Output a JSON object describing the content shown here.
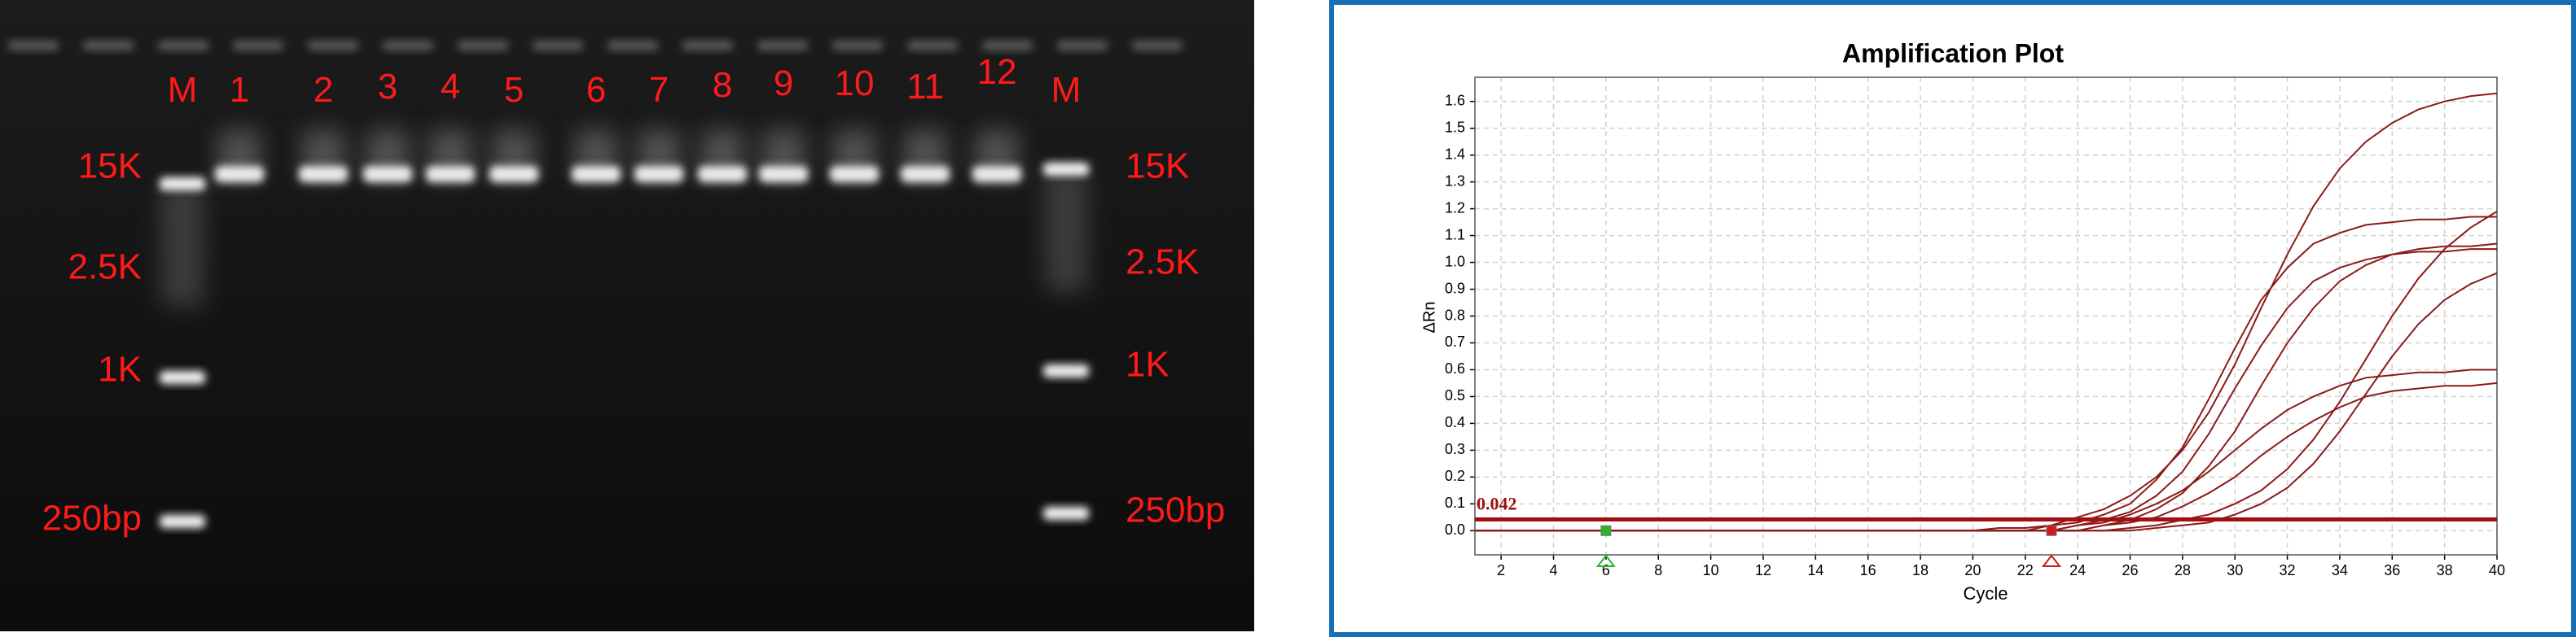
{
  "gel": {
    "lanes": [
      "M",
      "1",
      "2",
      "3",
      "4",
      "5",
      "6",
      "7",
      "8",
      "9",
      "10",
      "11",
      "12",
      "M"
    ],
    "ladder": [
      "15K",
      "2.5K",
      "1K",
      "250bp"
    ]
  },
  "chart_data": {
    "type": "line",
    "title": "Amplification Plot",
    "x_label": "Cycle",
    "y_label": "ΔRn",
    "x": [
      1,
      2,
      3,
      4,
      5,
      6,
      7,
      8,
      9,
      10,
      11,
      12,
      13,
      14,
      15,
      16,
      17,
      18,
      19,
      20,
      21,
      22,
      23,
      24,
      25,
      26,
      27,
      28,
      29,
      30,
      31,
      32,
      33,
      34,
      35,
      36,
      37,
      38,
      39,
      40
    ],
    "series": [
      {
        "color": "#8b1a1a",
        "values": [
          0,
          0,
          0,
          0,
          0,
          0,
          0,
          0,
          0,
          0,
          0,
          0,
          0,
          0,
          0,
          0,
          0,
          0,
          0,
          0,
          0.01,
          0.01,
          0.02,
          0.05,
          0.08,
          0.13,
          0.2,
          0.3,
          0.44,
          0.62,
          0.83,
          1.03,
          1.21,
          1.35,
          1.45,
          1.52,
          1.57,
          1.6,
          1.62,
          1.63
        ]
      },
      {
        "color": "#8b1a1a",
        "values": [
          0,
          0,
          0,
          0,
          0,
          0,
          0,
          0,
          0,
          0,
          0,
          0,
          0,
          0,
          0,
          0,
          0,
          0,
          0,
          0,
          0,
          0,
          0.02,
          0.03,
          0.06,
          0.1,
          0.19,
          0.31,
          0.49,
          0.68,
          0.86,
          0.98,
          1.07,
          1.11,
          1.14,
          1.15,
          1.16,
          1.16,
          1.17,
          1.17
        ]
      },
      {
        "color": "#8b1a1a",
        "values": [
          0,
          0,
          0,
          0,
          0,
          0,
          0,
          0,
          0,
          0,
          0,
          0,
          0,
          0,
          0,
          0,
          0,
          0,
          0,
          0,
          0,
          0,
          0,
          0.02,
          0.04,
          0.07,
          0.13,
          0.22,
          0.36,
          0.53,
          0.69,
          0.83,
          0.93,
          0.98,
          1.01,
          1.03,
          1.04,
          1.04,
          1.05,
          1.05
        ]
      },
      {
        "color": "#8b1a1a",
        "values": [
          0,
          0,
          0,
          0,
          0,
          0,
          0,
          0,
          0,
          0,
          0,
          0,
          0,
          0,
          0,
          0,
          0,
          0,
          0,
          0,
          0,
          0,
          0,
          0,
          0.02,
          0.04,
          0.08,
          0.14,
          0.24,
          0.37,
          0.54,
          0.7,
          0.83,
          0.93,
          0.99,
          1.03,
          1.05,
          1.06,
          1.06,
          1.07
        ]
      },
      {
        "color": "#8b1a1a",
        "values": [
          0,
          0,
          0,
          0,
          0,
          0,
          0,
          0,
          0,
          0,
          0,
          0,
          0,
          0,
          0,
          0,
          0,
          0,
          0,
          0,
          0,
          0,
          0,
          0,
          0,
          0.01,
          0.02,
          0.04,
          0.06,
          0.1,
          0.15,
          0.23,
          0.34,
          0.48,
          0.64,
          0.8,
          0.94,
          1.05,
          1.13,
          1.19
        ]
      },
      {
        "color": "#8b1a1a",
        "values": [
          0,
          0,
          0,
          0,
          0,
          0,
          0,
          0,
          0,
          0,
          0,
          0,
          0,
          0,
          0,
          0,
          0,
          0,
          0,
          0,
          0,
          0,
          0,
          0,
          0,
          0,
          0.01,
          0.02,
          0.03,
          0.06,
          0.1,
          0.16,
          0.25,
          0.37,
          0.51,
          0.65,
          0.77,
          0.86,
          0.92,
          0.96
        ]
      },
      {
        "color": "#8b1a1a",
        "values": [
          0,
          0,
          0,
          0,
          0,
          0,
          0,
          0,
          0,
          0,
          0,
          0,
          0,
          0,
          0,
          0,
          0,
          0,
          0,
          0,
          0,
          0,
          0,
          0.02,
          0.03,
          0.06,
          0.1,
          0.15,
          0.22,
          0.3,
          0.38,
          0.45,
          0.5,
          0.54,
          0.57,
          0.58,
          0.59,
          0.59,
          0.6,
          0.6
        ]
      },
      {
        "color": "#8b1a1a",
        "values": [
          0,
          0,
          0,
          0,
          0,
          0,
          0,
          0,
          0,
          0,
          0,
          0,
          0,
          0,
          0,
          0,
          0,
          0,
          0,
          0,
          0,
          0,
          0,
          0,
          0.02,
          0.03,
          0.05,
          0.09,
          0.14,
          0.2,
          0.28,
          0.35,
          0.41,
          0.46,
          0.5,
          0.52,
          0.53,
          0.54,
          0.54,
          0.55
        ]
      }
    ],
    "threshold": 0.042,
    "threshold_color": "#a01010",
    "baseline": [
      6,
      23
    ],
    "xlim": [
      1,
      40
    ],
    "xticks": [
      2,
      4,
      6,
      8,
      10,
      12,
      14,
      16,
      18,
      20,
      22,
      24,
      26,
      28,
      30,
      32,
      34,
      36,
      38,
      40
    ],
    "ylim": [
      -0.09,
      1.69
    ],
    "yticks": [
      {
        "value": 0,
        "label": "0.0"
      },
      0.1,
      0.2,
      0.3,
      0.4,
      0.5,
      0.6,
      0.7,
      0.8,
      0.9,
      {
        "value": 1,
        "label": "1.0"
      },
      1.1,
      1.2,
      1.3,
      1.4,
      1.5,
      1.6
    ],
    "grid": true
  }
}
